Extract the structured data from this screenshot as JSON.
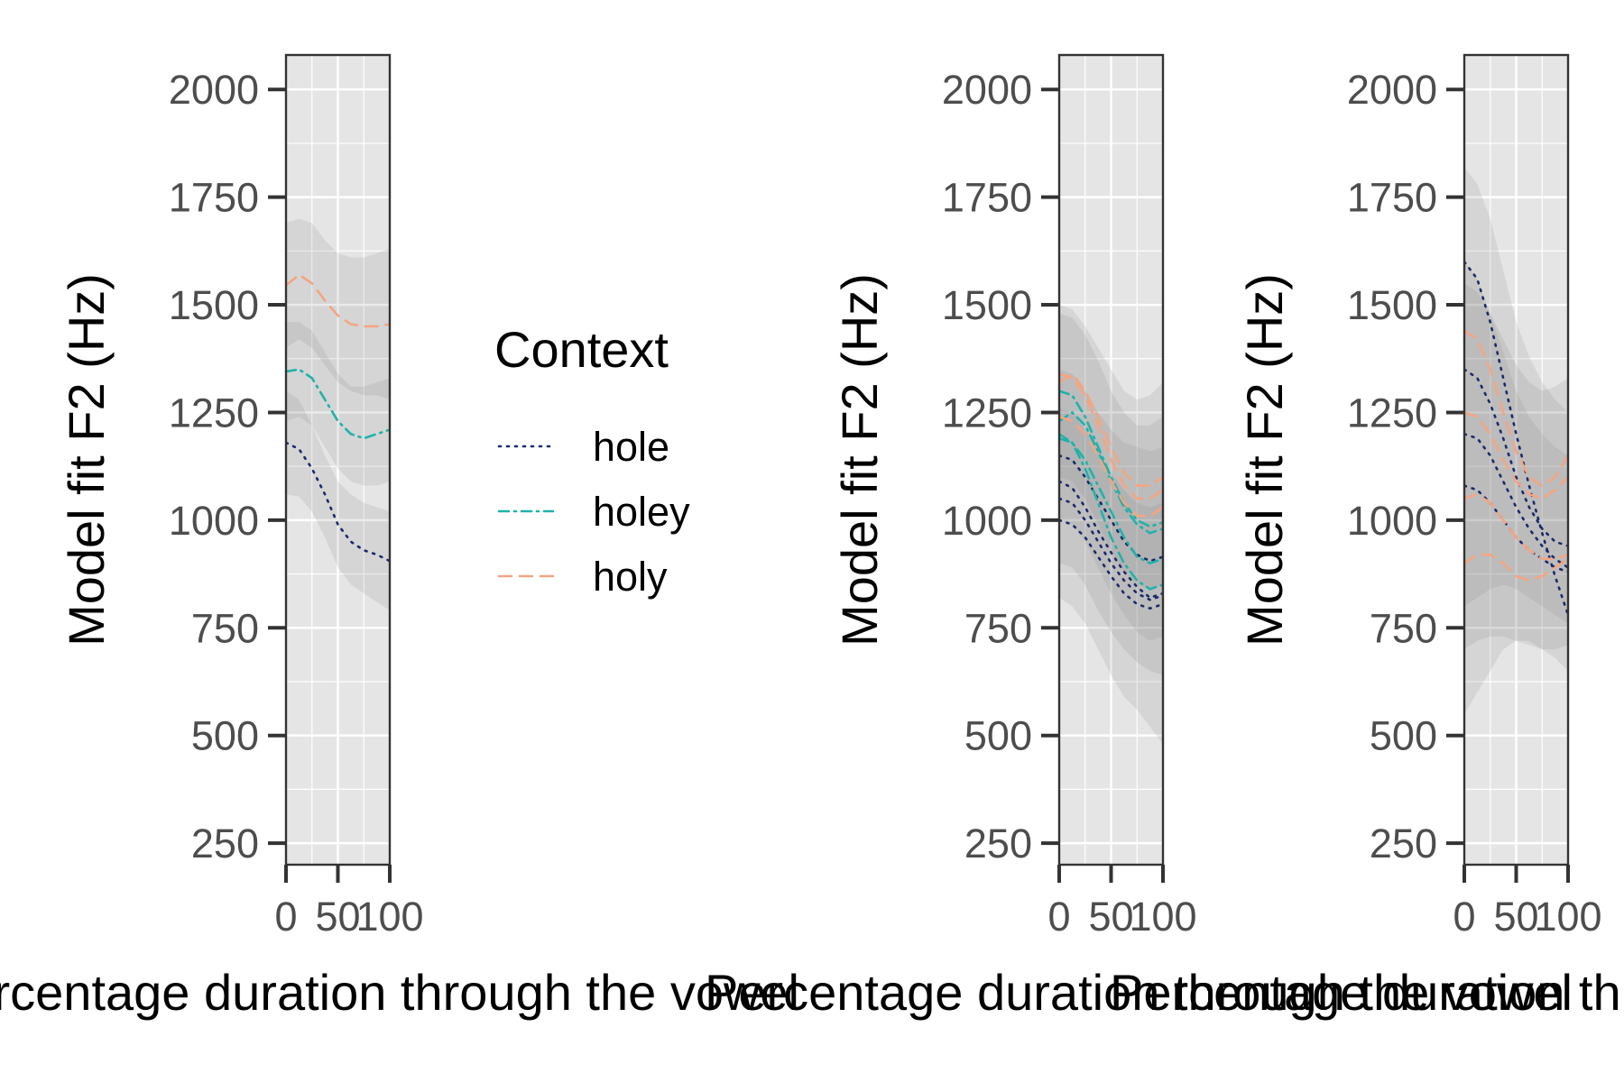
{
  "chart_data": [
    {
      "type": "line",
      "panel": "left",
      "ylabel": "Model fit F2 (Hz)",
      "xlabel": "Percentage duration through the vowel",
      "xlim": [
        0,
        100
      ],
      "ylim": [
        200,
        2080
      ],
      "xticks": [
        0,
        50,
        100
      ],
      "xtick_labels": [
        "0",
        "50",
        "100"
      ],
      "yticks": [
        250,
        500,
        750,
        1000,
        1250,
        1500,
        1750,
        2000
      ],
      "ytick_labels": [
        "250",
        "500",
        "750",
        "1000",
        "1250",
        "1500",
        "1750",
        "2000"
      ],
      "grid": true,
      "series": [
        {
          "name": "hole",
          "color": "#1b2a6b",
          "dash": "dotted",
          "x": [
            0,
            12.5,
            25,
            37.5,
            50,
            62.5,
            75,
            87.5,
            100
          ],
          "values": [
            1180,
            1165,
            1120,
            1060,
            990,
            950,
            930,
            920,
            905
          ],
          "ribbons": [
            {
              "lower": [
                1060,
                1055,
                1020,
                960,
                890,
                850,
                830,
                810,
                790
              ],
              "upper": [
                1300,
                1280,
                1220,
                1150,
                1090,
                1060,
                1040,
                1030,
                1020
              ]
            }
          ]
        },
        {
          "name": "holey",
          "color": "#20b2aa",
          "dash": "dotdash",
          "x": [
            0,
            12.5,
            25,
            37.5,
            50,
            62.5,
            75,
            87.5,
            100
          ],
          "values": [
            1345,
            1350,
            1330,
            1280,
            1230,
            1200,
            1190,
            1200,
            1210
          ],
          "ribbons": [
            {
              "lower": [
                1230,
                1240,
                1220,
                1170,
                1120,
                1090,
                1080,
                1080,
                1090
              ],
              "upper": [
                1460,
                1460,
                1440,
                1390,
                1340,
                1310,
                1310,
                1320,
                1330
              ]
            }
          ]
        },
        {
          "name": "holy",
          "color": "#f4a582",
          "dash": "dashed",
          "x": [
            0,
            12.5,
            25,
            37.5,
            50,
            62.5,
            75,
            87.5,
            100
          ],
          "values": [
            1545,
            1570,
            1550,
            1510,
            1475,
            1455,
            1450,
            1450,
            1455
          ],
          "ribbons": [
            {
              "lower": [
                1400,
                1420,
                1400,
                1360,
                1320,
                1300,
                1290,
                1290,
                1280
              ],
              "upper": [
                1690,
                1700,
                1690,
                1650,
                1620,
                1610,
                1610,
                1620,
                1630
              ]
            }
          ]
        }
      ]
    },
    {
      "type": "line",
      "panel": "middle",
      "ylabel": "Model fit F2 (Hz)",
      "xlabel": "Percentage duration through the vowel",
      "xlim": [
        0,
        100
      ],
      "ylim": [
        200,
        2080
      ],
      "xticks": [
        0,
        50,
        100
      ],
      "xtick_labels": [
        "0",
        "50",
        "100"
      ],
      "yticks": [
        250,
        500,
        750,
        1000,
        1250,
        1500,
        1750,
        2000
      ],
      "ytick_labels": [
        "250",
        "500",
        "750",
        "1000",
        "1250",
        "1500",
        "1750",
        "2000"
      ],
      "grid": true,
      "series": [
        {
          "name": "hole",
          "color": "#1b2a6b",
          "dash": "dotted",
          "x": [
            0,
            12.5,
            25,
            37.5,
            50,
            62.5,
            75,
            87.5,
            100
          ],
          "values_list": [
            [
              1090,
              1075,
              1030,
              975,
              925,
              880,
              845,
              820,
              830
            ],
            [
              1000,
              990,
              960,
              915,
              870,
              830,
              805,
              795,
              805
            ],
            [
              1150,
              1140,
              1100,
              1050,
              1000,
              950,
              920,
              905,
              915
            ],
            [
              1050,
              1040,
              1000,
              950,
              900,
              860,
              830,
              815,
              825
            ]
          ],
          "ribbons": [
            {
              "lower": [
                820,
                800,
                760,
                700,
                640,
                590,
                560,
                520,
                480
              ],
              "upper": [
                1350,
                1340,
                1300,
                1250,
                1210,
                1180,
                1170,
                1160,
                1170
              ]
            },
            {
              "lower": [
                900,
                890,
                850,
                790,
                740,
                700,
                670,
                650,
                640
              ],
              "upper": [
                1260,
                1250,
                1210,
                1160,
                1110,
                1070,
                1040,
                1030,
                1040
              ]
            }
          ]
        },
        {
          "name": "holey",
          "color": "#20b2aa",
          "dash": "dotdash",
          "x": [
            0,
            12.5,
            25,
            37.5,
            50,
            62.5,
            75,
            87.5,
            100
          ],
          "values_list": [
            [
              1300,
              1290,
              1240,
              1170,
              1100,
              1040,
              1000,
              985,
              995
            ],
            [
              1190,
              1180,
              1140,
              1080,
              1020,
              960,
              915,
              900,
              910
            ],
            [
              1230,
              1250,
              1220,
              1160,
              1090,
              1030,
              990,
              970,
              980
            ],
            [
              1200,
              1180,
              1120,
              1040,
              960,
              900,
              860,
              840,
              850
            ]
          ],
          "ribbons": [
            {
              "lower": [
                1000,
                990,
                950,
                890,
                830,
                780,
                740,
                720,
                730
              ],
              "upper": [
                1480,
                1470,
                1430,
                1370,
                1300,
                1250,
                1220,
                1220,
                1240
              ]
            }
          ]
        },
        {
          "name": "holy",
          "color": "#f4a582",
          "dash": "dashed",
          "x": [
            0,
            12.5,
            25,
            37.5,
            50,
            62.5,
            75,
            87.5,
            100
          ],
          "values_list": [
            [
              1340,
              1330,
              1290,
              1220,
              1140,
              1080,
              1050,
              1050,
              1070
            ],
            [
              1240,
              1230,
              1200,
              1150,
              1090,
              1040,
              1010,
              1010,
              1030
            ],
            [
              1320,
              1340,
              1300,
              1240,
              1170,
              1110,
              1080,
              1080,
              1100
            ]
          ],
          "ribbons": [
            {
              "lower": [
                1100,
                1090,
                1050,
                990,
                930,
                880,
                850,
                840,
                850
              ],
              "upper": [
                1500,
                1490,
                1450,
                1400,
                1350,
                1300,
                1280,
                1290,
                1320
              ]
            }
          ]
        }
      ]
    },
    {
      "type": "line",
      "panel": "right",
      "ylabel": "Model fit F2 (Hz)",
      "xlabel": "Percentage duration through the vowel",
      "xlim": [
        0,
        100
      ],
      "ylim": [
        200,
        2080
      ],
      "xticks": [
        0,
        50,
        100
      ],
      "xtick_labels": [
        "0",
        "50",
        "100"
      ],
      "yticks": [
        250,
        500,
        750,
        1000,
        1250,
        1500,
        1750,
        2000
      ],
      "ytick_labels": [
        "250",
        "500",
        "750",
        "1000",
        "1250",
        "1500",
        "1750",
        "2000"
      ],
      "grid": true,
      "series": [
        {
          "name": "hole",
          "color": "#1b2a6b",
          "dash": "dotted",
          "x": [
            0,
            12.5,
            25,
            37.5,
            50,
            62.5,
            75,
            87.5,
            100
          ],
          "values_list": [
            [
              1600,
              1560,
              1460,
              1330,
              1200,
              1080,
              970,
              870,
              780
            ],
            [
              1200,
              1190,
              1150,
              1090,
              1030,
              980,
              940,
              910,
              890
            ],
            [
              1350,
              1330,
              1270,
              1190,
              1100,
              1030,
              980,
              950,
              940
            ],
            [
              1080,
              1070,
              1040,
              1000,
              960,
              930,
              910,
              890,
              880
            ]
          ],
          "ribbons": [
            {
              "lower": [
                550,
                600,
                650,
                700,
                720,
                720,
                700,
                680,
                650
              ],
              "upper": [
                1820,
                1780,
                1700,
                1580,
                1460,
                1380,
                1320,
                1280,
                1250
              ]
            },
            {
              "lower": [
                800,
                820,
                840,
                850,
                840,
                820,
                800,
                780,
                760
              ],
              "upper": [
                1600,
                1560,
                1480,
                1390,
                1300,
                1240,
                1200,
                1170,
                1150
              ]
            }
          ]
        },
        {
          "name": "holy",
          "color": "#f4a582",
          "dash": "dashed",
          "x": [
            0,
            12.5,
            25,
            37.5,
            50,
            62.5,
            75,
            87.5,
            100
          ],
          "values_list": [
            [
              1440,
              1420,
              1350,
              1250,
              1160,
              1100,
              1080,
              1100,
              1150
            ],
            [
              1050,
              1060,
              1040,
              1000,
              960,
              930,
              910,
              910,
              920
            ],
            [
              900,
              920,
              920,
              900,
              870,
              860,
              870,
              890,
              910
            ],
            [
              1250,
              1240,
              1200,
              1140,
              1090,
              1060,
              1050,
              1070,
              1100
            ]
          ],
          "ribbons": [
            {
              "lower": [
                700,
                720,
                730,
                730,
                720,
                710,
                700,
                700,
                710
              ],
              "upper": [
                1550,
                1530,
                1480,
                1420,
                1360,
                1320,
                1300,
                1310,
                1330
              ]
            }
          ]
        }
      ]
    }
  ],
  "legend": {
    "title": "Context",
    "items": [
      {
        "label": "hole",
        "color": "#1b2a6b",
        "dash": "dotted"
      },
      {
        "label": "holey",
        "color": "#20b2aa",
        "dash": "dotdash"
      },
      {
        "label": "holy",
        "color": "#f4a582",
        "dash": "dashed"
      }
    ]
  },
  "style": {
    "panel_background": "#e5e5e5",
    "grid_color": "#ffffff",
    "axis_color": "#333333",
    "tick_label_color": "#4d4d4d",
    "ribbon_color": "#808080"
  }
}
